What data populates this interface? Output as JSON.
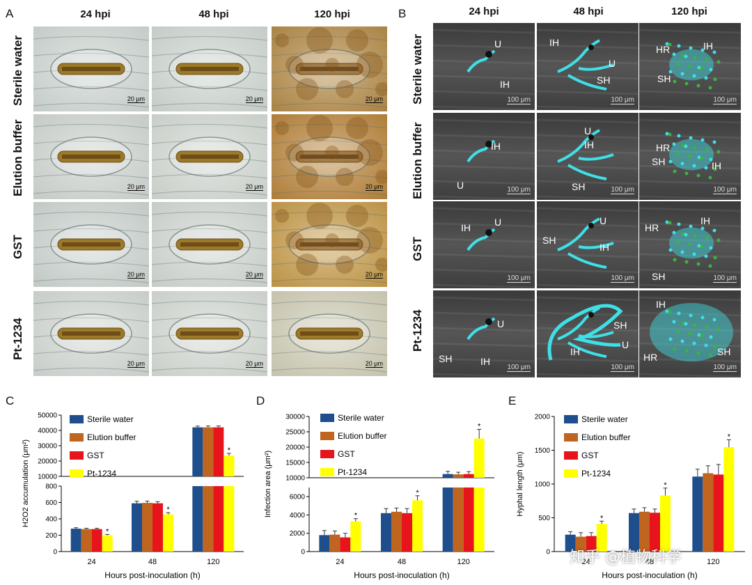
{
  "figure": {
    "panel_labels": [
      "A",
      "B",
      "C",
      "D",
      "E"
    ],
    "time_points": [
      "24 hpi",
      "48 hpi",
      "120 hpi"
    ],
    "treatments": [
      "Sterile water",
      "Elution buffer",
      "GST",
      "Pt-1234"
    ],
    "scale_bar_a": "20 μm",
    "scale_bar_b": "100 μm",
    "watermark": "知乎 @植物科学",
    "colors": {
      "sterile_water": "#1f4e8c",
      "elution_buffer": "#c0651f",
      "gst": "#e8141c",
      "pt1234": "#ffff00",
      "fungus": "#3ee0e8",
      "hr": "#3cb43c"
    },
    "panel_b_labels": [
      [
        "U",
        "IH"
      ],
      [
        "IH",
        "U",
        "SH"
      ],
      [
        "HR",
        "IH",
        "SH"
      ],
      [
        "IH",
        "U"
      ],
      [
        "U",
        "IH",
        "SH"
      ],
      [
        "HR",
        "SH",
        "IH"
      ],
      [
        "IH",
        "U"
      ],
      [
        "U",
        "SH",
        "IH"
      ],
      [
        "HR",
        "IH",
        "SH"
      ],
      [
        "U",
        "SH",
        "IH"
      ],
      [
        "SH",
        "IH",
        "U"
      ],
      [
        "IH",
        "HR",
        "SH"
      ]
    ]
  },
  "chart_data": [
    {
      "panel": "C",
      "type": "bar",
      "categories": [
        "24",
        "48",
        "120"
      ],
      "xlabel": "Hours post-inoculation (h)",
      "ylabel": "H2O2 accumulation (μm²)",
      "axis_break": {
        "lower": [
          0,
          800
        ],
        "upper": [
          10000,
          50000
        ]
      },
      "yticks_lower": [
        "0",
        "200",
        "400",
        "600",
        "800"
      ],
      "yticks_upper": [
        "10000",
        "20000",
        "30000",
        "40000",
        "50000"
      ],
      "series": [
        {
          "name": "Sterile water",
          "values": [
            280,
            590,
            42000
          ],
          "errors": [
            12,
            25,
            800
          ]
        },
        {
          "name": "Elution buffer",
          "values": [
            275,
            595,
            42000
          ],
          "errors": [
            10,
            22,
            900
          ]
        },
        {
          "name": "GST",
          "values": [
            275,
            590,
            42000
          ],
          "errors": [
            10,
            20,
            900
          ]
        },
        {
          "name": "Pt-1234",
          "values": [
            200,
            455,
            23500
          ],
          "errors": [
            10,
            20,
            1500
          ]
        }
      ],
      "significance": [
        {
          "category": "24",
          "series": "Pt-1234",
          "mark": "*"
        },
        {
          "category": "48",
          "series": "Pt-1234",
          "mark": "*"
        },
        {
          "category": "120",
          "series": "Pt-1234",
          "mark": "*"
        }
      ]
    },
    {
      "panel": "D",
      "type": "bar",
      "categories": [
        "24",
        "48",
        "120"
      ],
      "xlabel": "Hours post-inoculation (h)",
      "ylabel": "Infection area (μm²)",
      "axis_break": {
        "lower": [
          0,
          7000
        ],
        "upper": [
          10000,
          30000
        ]
      },
      "yticks_lower": [
        "0",
        "2000",
        "4000",
        "6000"
      ],
      "yticks_upper": [
        "10000",
        "15000",
        "20000",
        "25000",
        "30000"
      ],
      "series": [
        {
          "name": "Sterile water",
          "values": [
            1800,
            4200,
            11200
          ],
          "errors": [
            500,
            500,
            900
          ]
        },
        {
          "name": "Elution buffer",
          "values": [
            1850,
            4350,
            11100
          ],
          "errors": [
            400,
            400,
            700
          ]
        },
        {
          "name": "GST",
          "values": [
            1550,
            4200,
            11200
          ],
          "errors": [
            450,
            500,
            800
          ]
        },
        {
          "name": "Pt-1234",
          "values": [
            3300,
            5600,
            22800
          ],
          "errors": [
            300,
            500,
            3000
          ]
        }
      ],
      "significance": [
        {
          "category": "24",
          "series": "Pt-1234",
          "mark": "*"
        },
        {
          "category": "48",
          "series": "Pt-1234",
          "mark": "*"
        },
        {
          "category": "120",
          "series": "Pt-1234",
          "mark": "*"
        }
      ]
    },
    {
      "panel": "E",
      "type": "bar",
      "categories": [
        "24",
        "48",
        "120"
      ],
      "xlabel": "Hours post-inoculation (h)",
      "ylabel": "Hyphal length (μm)",
      "ylim": [
        0,
        2000
      ],
      "yticks": [
        "0",
        "500",
        "1000",
        "1500",
        "2000"
      ],
      "series": [
        {
          "name": "Sterile water",
          "values": [
            250,
            570,
            1110
          ],
          "errors": [
            45,
            60,
            110
          ]
        },
        {
          "name": "Elution buffer",
          "values": [
            220,
            590,
            1160
          ],
          "errors": [
            60,
            60,
            110
          ]
        },
        {
          "name": "GST",
          "values": [
            230,
            575,
            1140
          ],
          "errors": [
            50,
            55,
            150
          ]
        },
        {
          "name": "Pt-1234",
          "values": [
            410,
            830,
            1545
          ],
          "errors": [
            40,
            110,
            110
          ]
        }
      ],
      "significance": [
        {
          "category": "24",
          "series": "Pt-1234",
          "mark": "*"
        },
        {
          "category": "48",
          "series": "Pt-1234",
          "mark": "*"
        },
        {
          "category": "120",
          "series": "Pt-1234",
          "mark": "*"
        }
      ]
    }
  ]
}
